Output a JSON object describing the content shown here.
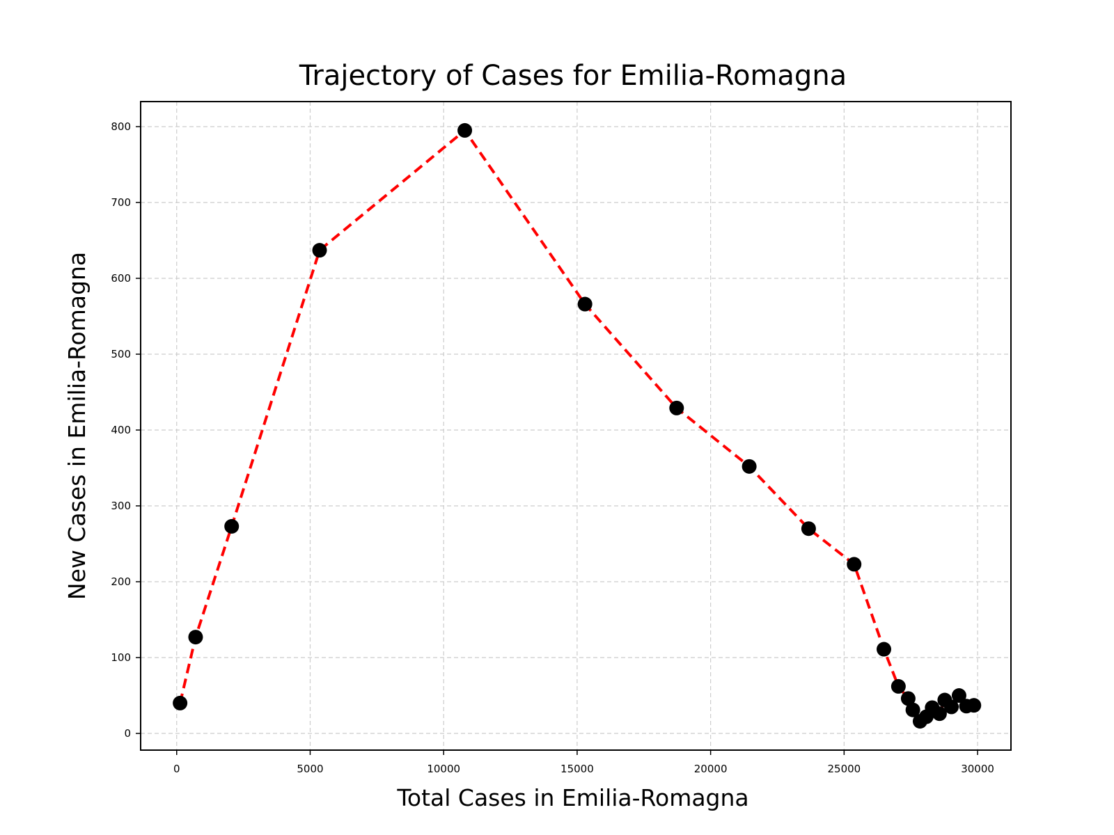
{
  "chart_data": {
    "type": "line",
    "title": "Trajectory of Cases for Emilia-Romagna",
    "xlabel": "Total Cases in Emilia-Romagna",
    "ylabel": "New Cases in Emilia-Romagna",
    "xlim": [
      -1350,
      31250
    ],
    "ylim": [
      -22,
      833
    ],
    "xticks": [
      0,
      5000,
      10000,
      15000,
      20000,
      25000,
      30000
    ],
    "yticks": [
      0,
      100,
      200,
      300,
      400,
      500,
      600,
      700,
      800
    ],
    "grid": true,
    "line_color": "#ff0000",
    "marker_color": "#000000",
    "series": [
      {
        "x": [
          127,
          709,
          2059,
          5353,
          10792,
          15294,
          18726,
          21447,
          23671,
          25375,
          26491,
          27035,
          27401,
          27576,
          27845,
          28079,
          28298,
          28575,
          28770,
          29021,
          29306,
          29582,
          29861
        ],
        "y": [
          40,
          127,
          273,
          637,
          795,
          566,
          429,
          352,
          270,
          223,
          111,
          62,
          46,
          31,
          16,
          22,
          34,
          26,
          44,
          35,
          50,
          36,
          37
        ]
      }
    ]
  }
}
